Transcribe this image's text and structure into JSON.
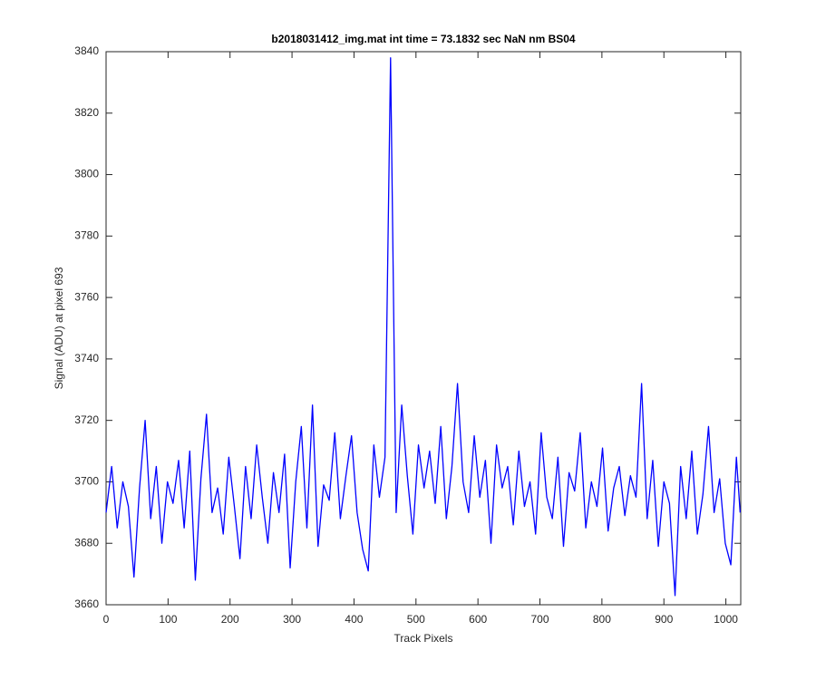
{
  "chart_data": {
    "type": "line",
    "title": "b2018031412_img.mat int time = 73.1832 sec  NaN nm BS04",
    "xlabel": "Track Pixels",
    "ylabel": "Signal (ADU) at pixel 693",
    "xlim": [
      0,
      1024
    ],
    "ylim": [
      3660,
      3840
    ],
    "xticks": [
      0,
      100,
      200,
      300,
      400,
      500,
      600,
      700,
      800,
      900,
      1000
    ],
    "yticks": [
      3660,
      3680,
      3700,
      3720,
      3740,
      3760,
      3780,
      3800,
      3820,
      3840
    ],
    "grid": false,
    "x": [
      0,
      9,
      18,
      27,
      36,
      45,
      54,
      63,
      72,
      81,
      90,
      99,
      108,
      117,
      126,
      135,
      144,
      153,
      162,
      171,
      180,
      189,
      198,
      207,
      216,
      225,
      234,
      243,
      252,
      261,
      270,
      279,
      288,
      297,
      306,
      315,
      324,
      333,
      342,
      351,
      360,
      369,
      378,
      387,
      396,
      405,
      414,
      423,
      432,
      441,
      450,
      459,
      468,
      477,
      486,
      495,
      504,
      513,
      522,
      531,
      540,
      549,
      558,
      567,
      576,
      585,
      594,
      603,
      612,
      621,
      630,
      639,
      648,
      657,
      666,
      675,
      684,
      693,
      702,
      711,
      720,
      729,
      738,
      747,
      756,
      765,
      774,
      783,
      792,
      801,
      810,
      819,
      828,
      837,
      846,
      855,
      864,
      873,
      882,
      891,
      900,
      909,
      918,
      927,
      936,
      945,
      954,
      963,
      972,
      981,
      990,
      999,
      1008,
      1017,
      1023
    ],
    "series": [
      {
        "color": "#0000ff",
        "values": [
          3690,
          3705,
          3685,
          3700,
          3692,
          3669,
          3698,
          3720,
          3688,
          3705,
          3680,
          3700,
          3693,
          3707,
          3685,
          3710,
          3668,
          3701,
          3722,
          3690,
          3698,
          3683,
          3708,
          3692,
          3675,
          3705,
          3688,
          3712,
          3695,
          3680,
          3703,
          3690,
          3709,
          3672,
          3700,
          3718,
          3685,
          3725,
          3679,
          3699,
          3694,
          3716,
          3688,
          3702,
          3715,
          3690,
          3678,
          3671,
          3712,
          3695,
          3708,
          3838,
          3690,
          3725,
          3702,
          3683,
          3712,
          3698,
          3710,
          3693,
          3718,
          3688,
          3705,
          3732,
          3700,
          3690,
          3715,
          3695,
          3707,
          3680,
          3712,
          3698,
          3705,
          3686,
          3710,
          3692,
          3700,
          3683,
          3716,
          3695,
          3688,
          3708,
          3679,
          3703,
          3697,
          3716,
          3685,
          3700,
          3692,
          3711,
          3684,
          3698,
          3705,
          3689,
          3702,
          3695,
          3732,
          3688,
          3707,
          3679,
          3700,
          3693,
          3663,
          3705,
          3688,
          3710,
          3683,
          3696,
          3718,
          3690,
          3701,
          3680,
          3673,
          3708,
          3690
        ]
      }
    ]
  }
}
